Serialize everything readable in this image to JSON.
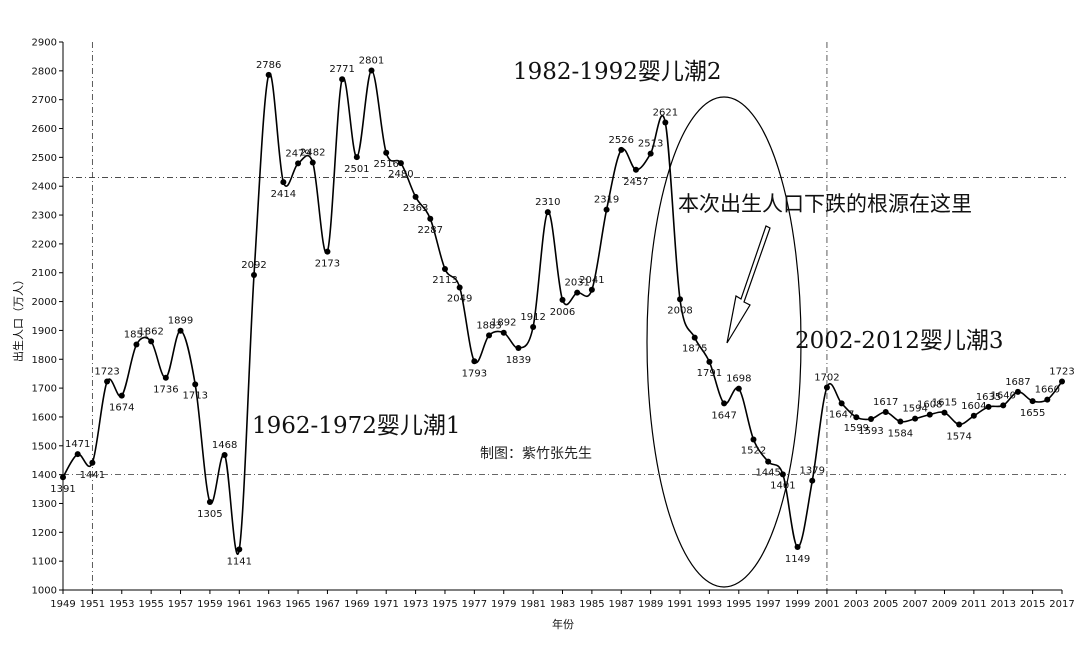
{
  "chart_data": {
    "type": "line",
    "title": "",
    "xlabel": "年份",
    "ylabel": "出生人口（万人）",
    "ylim": [
      1000,
      2900
    ],
    "yticks": [
      1000,
      1100,
      1200,
      1300,
      1400,
      1500,
      1600,
      1700,
      1800,
      1900,
      2000,
      2100,
      2200,
      2300,
      2400,
      2500,
      2600,
      2700,
      2800,
      2900
    ],
    "xticks": [
      1949,
      1951,
      1953,
      1955,
      1957,
      1959,
      1961,
      1963,
      1965,
      1967,
      1969,
      1971,
      1973,
      1975,
      1977,
      1979,
      1981,
      1983,
      1985,
      1987,
      1989,
      1991,
      1993,
      1995,
      1997,
      1999,
      2001,
      2003,
      2005,
      2007,
      2009,
      2011,
      2013,
      2015,
      2017
    ],
    "reference_lines": {
      "horizontal": [
        2430,
        1400
      ],
      "vertical": [
        1951,
        2001
      ]
    },
    "x": [
      1949,
      1950,
      1951,
      1952,
      1953,
      1954,
      1955,
      1956,
      1957,
      1958,
      1959,
      1960,
      1961,
      1962,
      1963,
      1964,
      1965,
      1966,
      1967,
      1968,
      1969,
      1970,
      1971,
      1972,
      1973,
      1974,
      1975,
      1976,
      1977,
      1978,
      1979,
      1980,
      1981,
      1982,
      1983,
      1984,
      1985,
      1986,
      1987,
      1988,
      1989,
      1990,
      1991,
      1992,
      1993,
      1994,
      1995,
      1996,
      1997,
      1998,
      1999,
      2000,
      2001,
      2002,
      2003,
      2004,
      2005,
      2006,
      2007,
      2008,
      2009,
      2010,
      2011,
      2012,
      2013,
      2014,
      2015,
      2016,
      2017
    ],
    "values": [
      1391,
      1471,
      1441,
      1723,
      1674,
      1851,
      1862,
      1736,
      1899,
      1713,
      1305,
      1468,
      1141,
      2092,
      2786,
      2414,
      2479,
      2482,
      2173,
      2771,
      2501,
      2801,
      2516,
      2480,
      2363,
      2287,
      2113,
      2049,
      1793,
      1883,
      1892,
      1839,
      1912,
      2310,
      2006,
      2031,
      2041,
      2319,
      2526,
      2457,
      2513,
      2621,
      2008,
      1875,
      1791,
      1647,
      1698,
      1522,
      1445,
      1401,
      1149,
      1379,
      1702,
      1647,
      1599,
      1593,
      1617,
      1584,
      1594,
      1608,
      1615,
      1574,
      1604,
      1635,
      1640,
      1687,
      1655,
      1660,
      1723
    ],
    "point_labels": [
      "1391",
      "1471",
      "1441",
      "1723",
      "1674",
      "1851",
      "1862",
      "1736",
      "1899",
      "1713",
      "1305",
      "1468",
      "1141",
      "2092",
      "2786",
      "2414",
      "2479",
      "2482",
      "2173",
      "2771",
      "2501",
      "2801",
      "2516",
      "2480",
      "2363",
      "2287",
      "2113",
      "2049",
      "1793",
      "1883",
      "1892",
      "1839",
      "1912",
      "2310",
      "2006",
      "2031",
      "2041",
      "2319",
      "2526",
      "2457",
      "2513",
      "2621",
      "2008",
      "1875",
      "1791",
      "1647",
      "1698",
      "1522",
      "1445",
      "1401",
      "1149",
      "1379",
      "1702",
      "1647",
      "1599",
      "1593",
      "1617",
      "1584",
      "1594",
      "1608",
      "1615",
      "1574",
      "1604",
      "1635",
      "1640",
      "1687",
      "1655",
      "1660",
      "1723"
    ],
    "annotations": {
      "boom1": "1962-1972婴儿潮1",
      "boom2": "1982-1992婴儿潮2",
      "boom3": "2002-2012婴儿潮3",
      "root_cause": "本次出生人口下跌的根源在这里",
      "credit": "制图：紫竹张先生"
    }
  }
}
